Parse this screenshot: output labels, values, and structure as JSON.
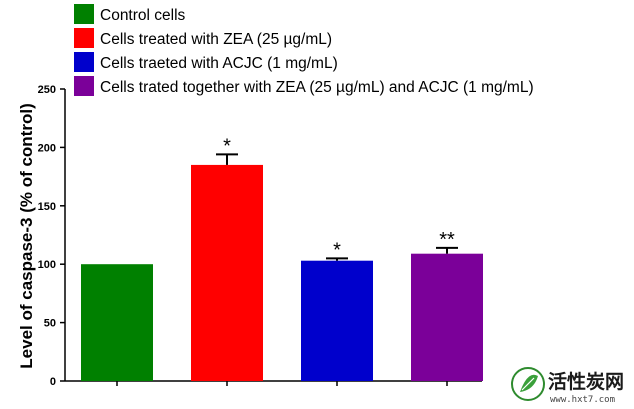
{
  "chart_data": {
    "type": "bar",
    "ylabel": "Level of caspase-3 (% of control)",
    "ylim": [
      0,
      250
    ],
    "yticks": [
      0,
      50,
      100,
      150,
      200,
      250
    ],
    "grid": false,
    "legend_position": "top-left",
    "series": [
      {
        "name": "Control cells",
        "value": 100,
        "error": 0,
        "color": "#008000",
        "annotation": ""
      },
      {
        "name": "Cells treated with ZEA (25 µg/mL)",
        "value": 185,
        "error": 9,
        "color": "#ff0000",
        "annotation": "*"
      },
      {
        "name": "Cells traeted with ACJC (1 mg/mL)",
        "value": 103,
        "error": 2,
        "color": "#0000cc",
        "annotation": "*"
      },
      {
        "name": "Cells trated together with ZEA (25 µg/mL) and ACJC (1 mg/mL)",
        "value": 109,
        "error": 5,
        "color": "#7b0099",
        "annotation": "**"
      }
    ]
  },
  "watermark": {
    "name": "活性炭网",
    "url": "www.hxt7.com",
    "icon": "leaf-logo-icon"
  }
}
